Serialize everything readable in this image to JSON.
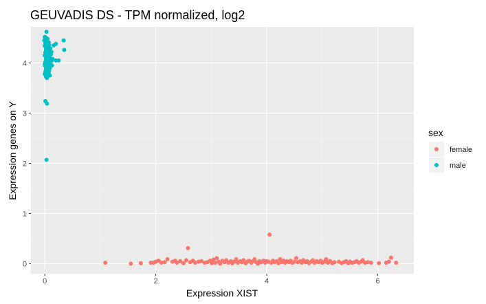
{
  "chart_data": {
    "type": "scatter",
    "title": "GEUVADIS DS - TPM normalized, log2",
    "xlabel": "Expression XIST",
    "ylabel": "Expression genes on Y",
    "xlim": [
      -0.25,
      6.65
    ],
    "ylim": [
      -0.2,
      4.72
    ],
    "x_ticks": [
      0,
      2,
      4,
      6
    ],
    "y_ticks": [
      0,
      1,
      2,
      3,
      4
    ],
    "x_tick_labels": [
      "0",
      "2",
      "4",
      "6"
    ],
    "y_tick_labels": [
      "0",
      "1",
      "2",
      "3",
      "4"
    ],
    "grid": true,
    "legend": {
      "title": "sex",
      "position": "right"
    },
    "series": [
      {
        "name": "female",
        "color": "#F8766D",
        "points": [
          [
            1.09,
            0.02
          ],
          [
            1.55,
            0.0
          ],
          [
            1.73,
            0.01
          ],
          [
            1.91,
            0.02
          ],
          [
            1.96,
            0.02
          ],
          [
            2.0,
            0.04
          ],
          [
            2.05,
            0.06
          ],
          [
            2.1,
            0.02
          ],
          [
            2.16,
            0.03
          ],
          [
            2.21,
            0.09
          ],
          [
            2.3,
            0.04
          ],
          [
            2.35,
            0.06
          ],
          [
            2.38,
            0.02
          ],
          [
            2.44,
            0.05
          ],
          [
            2.5,
            0.01
          ],
          [
            2.55,
            0.07
          ],
          [
            2.58,
            0.31
          ],
          [
            2.62,
            0.03
          ],
          [
            2.67,
            0.06
          ],
          [
            2.71,
            0.02
          ],
          [
            2.77,
            0.04
          ],
          [
            2.82,
            0.05
          ],
          [
            2.88,
            0.02
          ],
          [
            2.93,
            0.03
          ],
          [
            2.98,
            0.06
          ],
          [
            3.01,
            0.01
          ],
          [
            3.04,
            0.08
          ],
          [
            3.07,
            0.02
          ],
          [
            3.1,
            0.11
          ],
          [
            3.13,
            0.04
          ],
          [
            3.16,
            0.0
          ],
          [
            3.2,
            0.06
          ],
          [
            3.24,
            0.03
          ],
          [
            3.27,
            0.07
          ],
          [
            3.31,
            0.02
          ],
          [
            3.35,
            0.05
          ],
          [
            3.38,
            0.01
          ],
          [
            3.41,
            0.04
          ],
          [
            3.45,
            0.09
          ],
          [
            3.48,
            0.02
          ],
          [
            3.52,
            0.05
          ],
          [
            3.55,
            0.03
          ],
          [
            3.58,
            0.07
          ],
          [
            3.62,
            0.01
          ],
          [
            3.65,
            0.04
          ],
          [
            3.68,
            0.06
          ],
          [
            3.72,
            0.02
          ],
          [
            3.75,
            0.05
          ],
          [
            3.78,
            0.09
          ],
          [
            3.81,
            0.03
          ],
          [
            3.84,
            0.0
          ],
          [
            3.87,
            0.05
          ],
          [
            3.9,
            0.03
          ],
          [
            3.94,
            0.06
          ],
          [
            3.97,
            0.02
          ],
          [
            4.0,
            0.05
          ],
          [
            4.03,
            0.04
          ],
          [
            4.05,
            0.58
          ],
          [
            4.08,
            0.02
          ],
          [
            4.11,
            0.06
          ],
          [
            4.14,
            0.03
          ],
          [
            4.18,
            0.05
          ],
          [
            4.21,
            0.01
          ],
          [
            4.24,
            0.09
          ],
          [
            4.27,
            0.03
          ],
          [
            4.3,
            0.06
          ],
          [
            4.33,
            0.02
          ],
          [
            4.36,
            0.05
          ],
          [
            4.4,
            0.03
          ],
          [
            4.43,
            0.06
          ],
          [
            4.46,
            0.02
          ],
          [
            4.5,
            0.04
          ],
          [
            4.53,
            0.11
          ],
          [
            4.56,
            0.03
          ],
          [
            4.6,
            0.05
          ],
          [
            4.63,
            0.02
          ],
          [
            4.66,
            0.07
          ],
          [
            4.7,
            0.03
          ],
          [
            4.73,
            0.05
          ],
          [
            4.76,
            0.01
          ],
          [
            4.8,
            0.04
          ],
          [
            4.83,
            0.07
          ],
          [
            4.86,
            0.02
          ],
          [
            4.9,
            0.05
          ],
          [
            4.93,
            0.03
          ],
          [
            4.97,
            0.06
          ],
          [
            5.0,
            0.02
          ],
          [
            5.04,
            0.04
          ],
          [
            5.07,
            0.09
          ],
          [
            5.1,
            0.02
          ],
          [
            5.14,
            0.05
          ],
          [
            5.18,
            0.01
          ],
          [
            5.22,
            0.03
          ],
          [
            5.3,
            0.04
          ],
          [
            5.35,
            0.01
          ],
          [
            5.39,
            0.03
          ],
          [
            5.43,
            0.05
          ],
          [
            5.47,
            0.01
          ],
          [
            5.5,
            0.04
          ],
          [
            5.54,
            0.02
          ],
          [
            5.58,
            0.03
          ],
          [
            5.62,
            0.05
          ],
          [
            5.66,
            0.02
          ],
          [
            5.7,
            0.04
          ],
          [
            5.73,
            0.07
          ],
          [
            5.77,
            0.02
          ],
          [
            5.82,
            0.03
          ],
          [
            5.88,
            0.02
          ],
          [
            6.02,
            0.01
          ],
          [
            6.15,
            0.02
          ],
          [
            6.2,
            0.04
          ],
          [
            6.24,
            0.12
          ],
          [
            6.33,
            0.02
          ]
        ]
      },
      {
        "name": "male",
        "color": "#00BFC4",
        "points": [
          [
            0.03,
            4.62
          ],
          [
            0.0,
            4.52
          ],
          [
            0.02,
            4.5
          ],
          [
            0.05,
            4.48
          ],
          [
            -0.01,
            4.45
          ],
          [
            0.03,
            4.43
          ],
          [
            0.07,
            4.41
          ],
          [
            0.01,
            4.39
          ],
          [
            0.04,
            4.37
          ],
          [
            0.08,
            4.36
          ],
          [
            0.0,
            4.34
          ],
          [
            0.03,
            4.32
          ],
          [
            0.06,
            4.3
          ],
          [
            0.1,
            4.29
          ],
          [
            0.02,
            4.27
          ],
          [
            0.05,
            4.25
          ],
          [
            0.09,
            4.23
          ],
          [
            0.01,
            4.21
          ],
          [
            0.04,
            4.2
          ],
          [
            0.07,
            4.18
          ],
          [
            0.11,
            4.17
          ],
          [
            0.0,
            4.15
          ],
          [
            0.03,
            4.13
          ],
          [
            0.06,
            4.12
          ],
          [
            0.09,
            4.1
          ],
          [
            0.02,
            4.08
          ],
          [
            0.05,
            4.07
          ],
          [
            0.08,
            4.05
          ],
          [
            0.12,
            4.04
          ],
          [
            0.01,
            4.02
          ],
          [
            0.04,
            4.0
          ],
          [
            0.07,
            3.99
          ],
          [
            0.1,
            3.97
          ],
          [
            0.0,
            3.95
          ],
          [
            0.03,
            3.94
          ],
          [
            0.06,
            3.92
          ],
          [
            0.09,
            3.9
          ],
          [
            0.02,
            3.88
          ],
          [
            0.05,
            3.87
          ],
          [
            0.08,
            3.85
          ],
          [
            0.01,
            3.83
          ],
          [
            0.04,
            3.82
          ],
          [
            0.07,
            3.8
          ],
          [
            0.0,
            3.78
          ],
          [
            0.03,
            3.77
          ],
          [
            0.06,
            3.75
          ],
          [
            0.02,
            3.73
          ],
          [
            0.04,
            3.7
          ],
          [
            0.09,
            3.75
          ],
          [
            0.13,
            3.95
          ],
          [
            0.14,
            4.08
          ],
          [
            0.12,
            4.22
          ],
          [
            0.16,
            4.35
          ],
          [
            0.2,
            4.05
          ],
          [
            0.25,
            4.05
          ],
          [
            0.2,
            4.38
          ],
          [
            0.34,
            4.45
          ],
          [
            0.35,
            4.26
          ],
          [
            0.02,
            4.22
          ],
          [
            0.0,
            3.98
          ],
          [
            0.05,
            4.15
          ],
          [
            0.01,
            3.24
          ],
          [
            0.04,
            3.19
          ],
          [
            0.03,
            2.07
          ]
        ]
      }
    ]
  }
}
